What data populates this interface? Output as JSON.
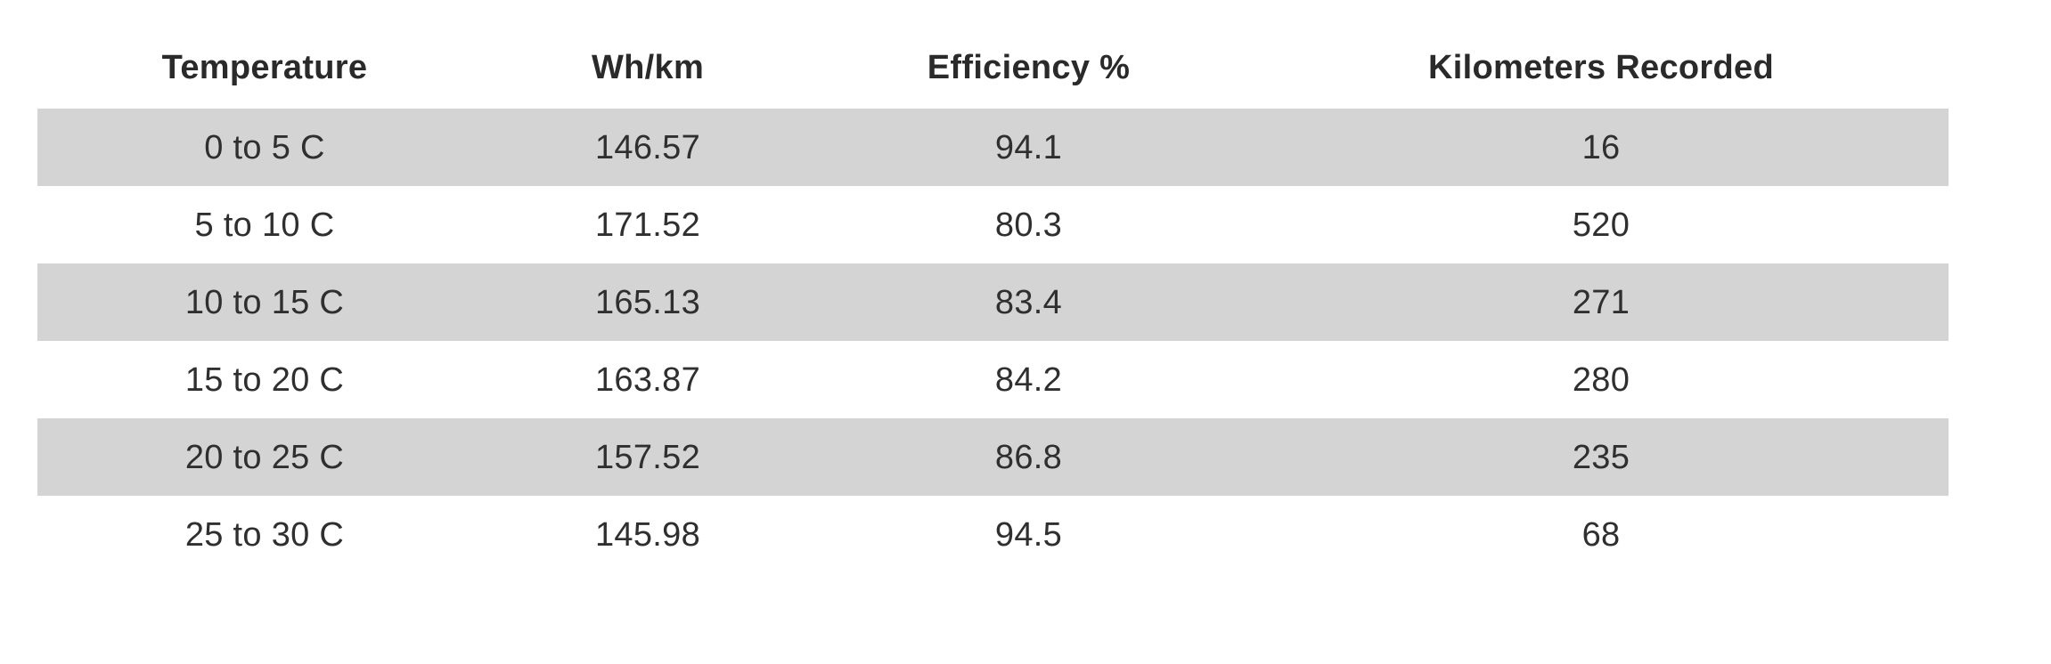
{
  "table": {
    "headers": [
      "Temperature",
      "Wh/km",
      "Efficiency %",
      "Kilometers Recorded"
    ],
    "rows": [
      [
        "0 to 5 C",
        "146.57",
        "94.1",
        "16"
      ],
      [
        "5 to 10 C",
        "171.52",
        "80.3",
        "520"
      ],
      [
        "10 to 15 C",
        "165.13",
        "83.4",
        "271"
      ],
      [
        "15 to 20 C",
        "163.87",
        "84.2",
        "280"
      ],
      [
        "20 to 25 C",
        "157.52",
        "86.8",
        "235"
      ],
      [
        "25 to 30 C",
        "145.98",
        "94.5",
        "68"
      ]
    ]
  },
  "colors": {
    "shaded_row": "#d4d4d4",
    "text": "#2f2f2f",
    "background": "#ffffff"
  }
}
